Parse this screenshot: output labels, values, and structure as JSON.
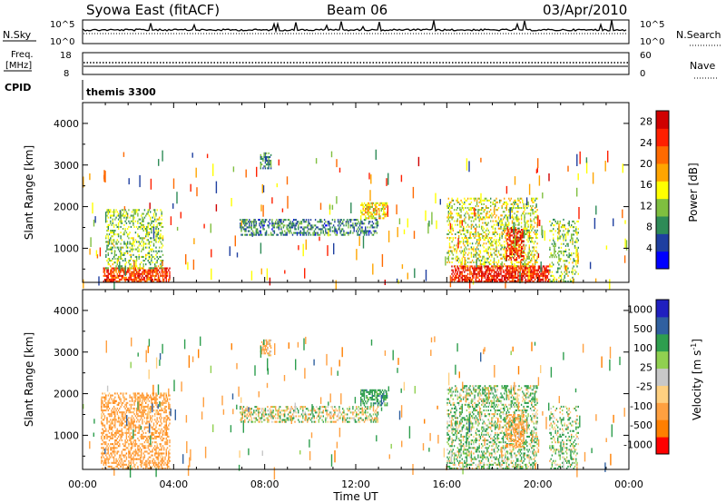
{
  "header": {
    "station": "Syowa East (fitACF)",
    "beam": "Beam 06",
    "date": "03/Apr/2010"
  },
  "noise_panel": {
    "left_label": "N.Sky",
    "right_label": "N.Search",
    "left_ticks": [
      "10^5",
      "10^0"
    ],
    "right_ticks": [
      "10^5",
      "10^0"
    ]
  },
  "freq_panel": {
    "left_label_1": "Freq.",
    "left_label_2": "[MHz]",
    "right_label": "Nave",
    "left_ticks": [
      "18",
      "8"
    ],
    "right_ticks": [
      "60",
      "0"
    ]
  },
  "cpid": {
    "label": "CPID",
    "value": "themis 3300"
  },
  "x_axis": {
    "label": "Time UT",
    "ticks": [
      "00:00",
      "04:00",
      "08:00",
      "12:00",
      "16:00",
      "20:00",
      "00:00"
    ]
  },
  "y_axis": {
    "label": "Slant Range [km]",
    "ticks": [
      "1000",
      "2000",
      "3000",
      "4000"
    ]
  },
  "colors": {
    "power": [
      "#0000ff",
      "#1f3fa0",
      "#2e8b57",
      "#7fbf3f",
      "#ffff00",
      "#ffa500",
      "#ff6a00",
      "#ff2000",
      "#d00000"
    ],
    "velocity": [
      "#ff0000",
      "#ff7f00",
      "#ffa040",
      "#ffd080",
      "#c8c8c8",
      "#90d050",
      "#2e9e4e",
      "#3060a0",
      "#2020c0"
    ]
  },
  "chart_data": [
    {
      "type": "heatmap",
      "panel": "power",
      "xlabel": "Time UT",
      "ylabel": "Slant Range [km]",
      "xlim": [
        0,
        24
      ],
      "ylim": [
        180,
        4500
      ],
      "colorbar": {
        "label": "Power [dB]",
        "range": [
          0,
          30
        ],
        "ticks": [
          "4",
          "8",
          "12",
          "16",
          "20",
          "24",
          "28"
        ]
      },
      "regions": [
        {
          "t": [
            0.9,
            3.8
          ],
          "r": [
            180,
            500
          ],
          "mean": 24,
          "density": 0.7
        },
        {
          "t": [
            1.0,
            3.5
          ],
          "r": [
            500,
            1900
          ],
          "mean": 12,
          "density": 0.35
        },
        {
          "t": [
            6.9,
            13.0
          ],
          "r": [
            1300,
            1700
          ],
          "mean": 8,
          "density": 0.45
        },
        {
          "t": [
            7.8,
            8.3
          ],
          "r": [
            2900,
            3300
          ],
          "mean": 8,
          "density": 0.6
        },
        {
          "t": [
            12.2,
            13.4
          ],
          "r": [
            1700,
            2100
          ],
          "mean": 16,
          "density": 0.55
        },
        {
          "t": [
            16.2,
            20.5
          ],
          "r": [
            180,
            550
          ],
          "mean": 26,
          "density": 0.7
        },
        {
          "t": [
            16.0,
            20.0
          ],
          "r": [
            550,
            2200
          ],
          "mean": 14,
          "density": 0.35
        },
        {
          "t": [
            18.6,
            19.4
          ],
          "r": [
            700,
            1500
          ],
          "mean": 26,
          "density": 0.6
        },
        {
          "t": [
            20.5,
            21.8
          ],
          "r": [
            180,
            1700
          ],
          "mean": 12,
          "density": 0.3
        }
      ]
    },
    {
      "type": "heatmap",
      "panel": "velocity",
      "xlabel": "Time UT",
      "ylabel": "Slant Range [km]",
      "xlim": [
        0,
        24
      ],
      "ylim": [
        180,
        4500
      ],
      "colorbar": {
        "label": "Velocity [m s^-1]",
        "range": [
          -1000,
          1000
        ],
        "ticks": [
          "1000",
          "500",
          "100",
          "25",
          "-25",
          "-100",
          "-500",
          "-1000"
        ]
      },
      "regions": [
        {
          "t": [
            0.8,
            3.8
          ],
          "r": [
            180,
            2000
          ],
          "mean": -300,
          "density": 0.45
        },
        {
          "t": [
            6.9,
            13.0
          ],
          "r": [
            1300,
            1700
          ],
          "mean": 0,
          "density": 0.45
        },
        {
          "t": [
            7.8,
            8.3
          ],
          "r": [
            2900,
            3300
          ],
          "mean": -200,
          "density": 0.55
        },
        {
          "t": [
            12.2,
            13.4
          ],
          "r": [
            1700,
            2100
          ],
          "mean": 300,
          "density": 0.55
        },
        {
          "t": [
            16.0,
            20.0
          ],
          "r": [
            180,
            2200
          ],
          "mean": 100,
          "density": 0.4
        },
        {
          "t": [
            18.6,
            19.4
          ],
          "r": [
            700,
            1500
          ],
          "mean": -300,
          "density": 0.5
        },
        {
          "t": [
            20.5,
            21.8
          ],
          "r": [
            180,
            1700
          ],
          "mean": 100,
          "density": 0.3
        }
      ]
    }
  ]
}
